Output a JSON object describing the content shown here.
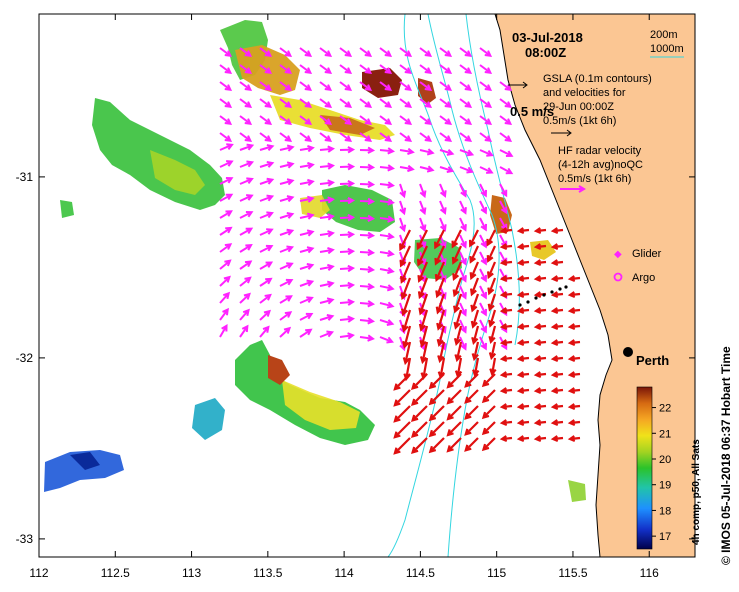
{
  "header": {
    "date": "03-Jul-2018",
    "time": "08:00Z"
  },
  "depth_legend": {
    "contour_200": "200m",
    "contour_1000": "1000m"
  },
  "gsla_legend": {
    "line1": "GSLA (0.1m contours)",
    "line2": "and velocities for",
    "line3": "29-Jun 00:00Z",
    "line4": "0.5m/s (1kt 6h)"
  },
  "scale_label": "0.5 m/s",
  "hf_legend": {
    "line1": "HF radar velocity",
    "line2": "(4-12h avg)noQC",
    "line3": "0.5m/s (1kt 6h)"
  },
  "platform_legend": {
    "glider": "Glider",
    "argo": "Argo"
  },
  "city": "Perth",
  "colorbar": {
    "label": "4h comp, p50, All Sats",
    "ticks": [
      "22",
      "21",
      "20",
      "19",
      "18",
      "17"
    ],
    "tick_values": [
      22,
      21,
      20,
      19,
      18,
      17
    ],
    "min": 16.5,
    "max": 22.8
  },
  "side_label": "© IMOS 05-Jul-2018 06:37 Hobart Time",
  "axes": {
    "x_ticks": [
      "112",
      "112.5",
      "113",
      "113.5",
      "114",
      "114.5",
      "115",
      "115.5",
      "116"
    ],
    "x_values": [
      112,
      112.5,
      113,
      113.5,
      114,
      114.5,
      115,
      115.5,
      116
    ],
    "y_ticks": [
      "-31",
      "-32",
      "-33"
    ],
    "y_values": [
      -31,
      -32,
      -33
    ],
    "xlim": [
      112,
      116.3
    ],
    "ylim": [
      -33.1,
      -30.1
    ]
  },
  "colors": {
    "land": "#fbc693",
    "coast": "#000000",
    "contour": "#33d6e0",
    "gsla_arrows": "#ff22ff",
    "hf_arrows": "#e01010",
    "glider": "#ff22ff",
    "argo": "#ff22ff"
  }
}
